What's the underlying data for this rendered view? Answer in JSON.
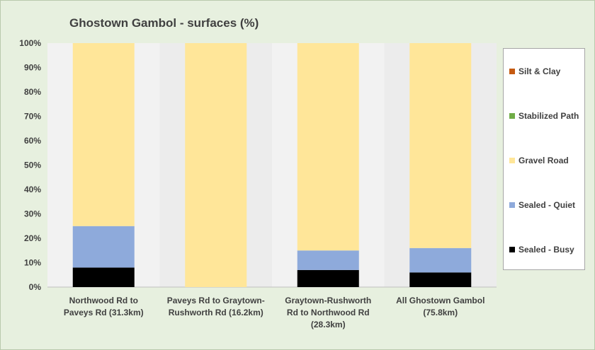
{
  "chart_data": {
    "type": "bar",
    "stacked": true,
    "title": "Ghostown Gambol - surfaces (%)",
    "xlabel": "",
    "ylabel": "",
    "ylim": [
      0,
      100
    ],
    "yticks": [
      "0%",
      "10%",
      "20%",
      "30%",
      "40%",
      "50%",
      "60%",
      "70%",
      "80%",
      "90%",
      "100%"
    ],
    "categories": [
      [
        "Northwood Rd to",
        "Paveys Rd (31.3km)"
      ],
      [
        "Paveys Rd to Graytown-",
        "Rushworth Rd (16.2km)"
      ],
      [
        "Graytown-Rushworth",
        "Rd to Northwood Rd",
        "(28.3km)"
      ],
      [
        "All Ghostown Gambol",
        "(75.8km)"
      ]
    ],
    "series": [
      {
        "name": "Sealed - Busy",
        "color": "#000000",
        "values": [
          8,
          0,
          7,
          6
        ]
      },
      {
        "name": "Sealed - Quiet",
        "color": "#8eaadb",
        "values": [
          17,
          0,
          8,
          10
        ]
      },
      {
        "name": "Gravel Road",
        "color": "#ffe699",
        "values": [
          75,
          100,
          85,
          84
        ]
      },
      {
        "name": "Stabilized Path",
        "color": "#70ad47",
        "values": [
          0,
          0,
          0,
          0
        ]
      },
      {
        "name": "Silt & Clay",
        "color": "#c55a11",
        "values": [
          0,
          0,
          0,
          0
        ]
      }
    ],
    "legend_position": "right",
    "grid": false
  }
}
